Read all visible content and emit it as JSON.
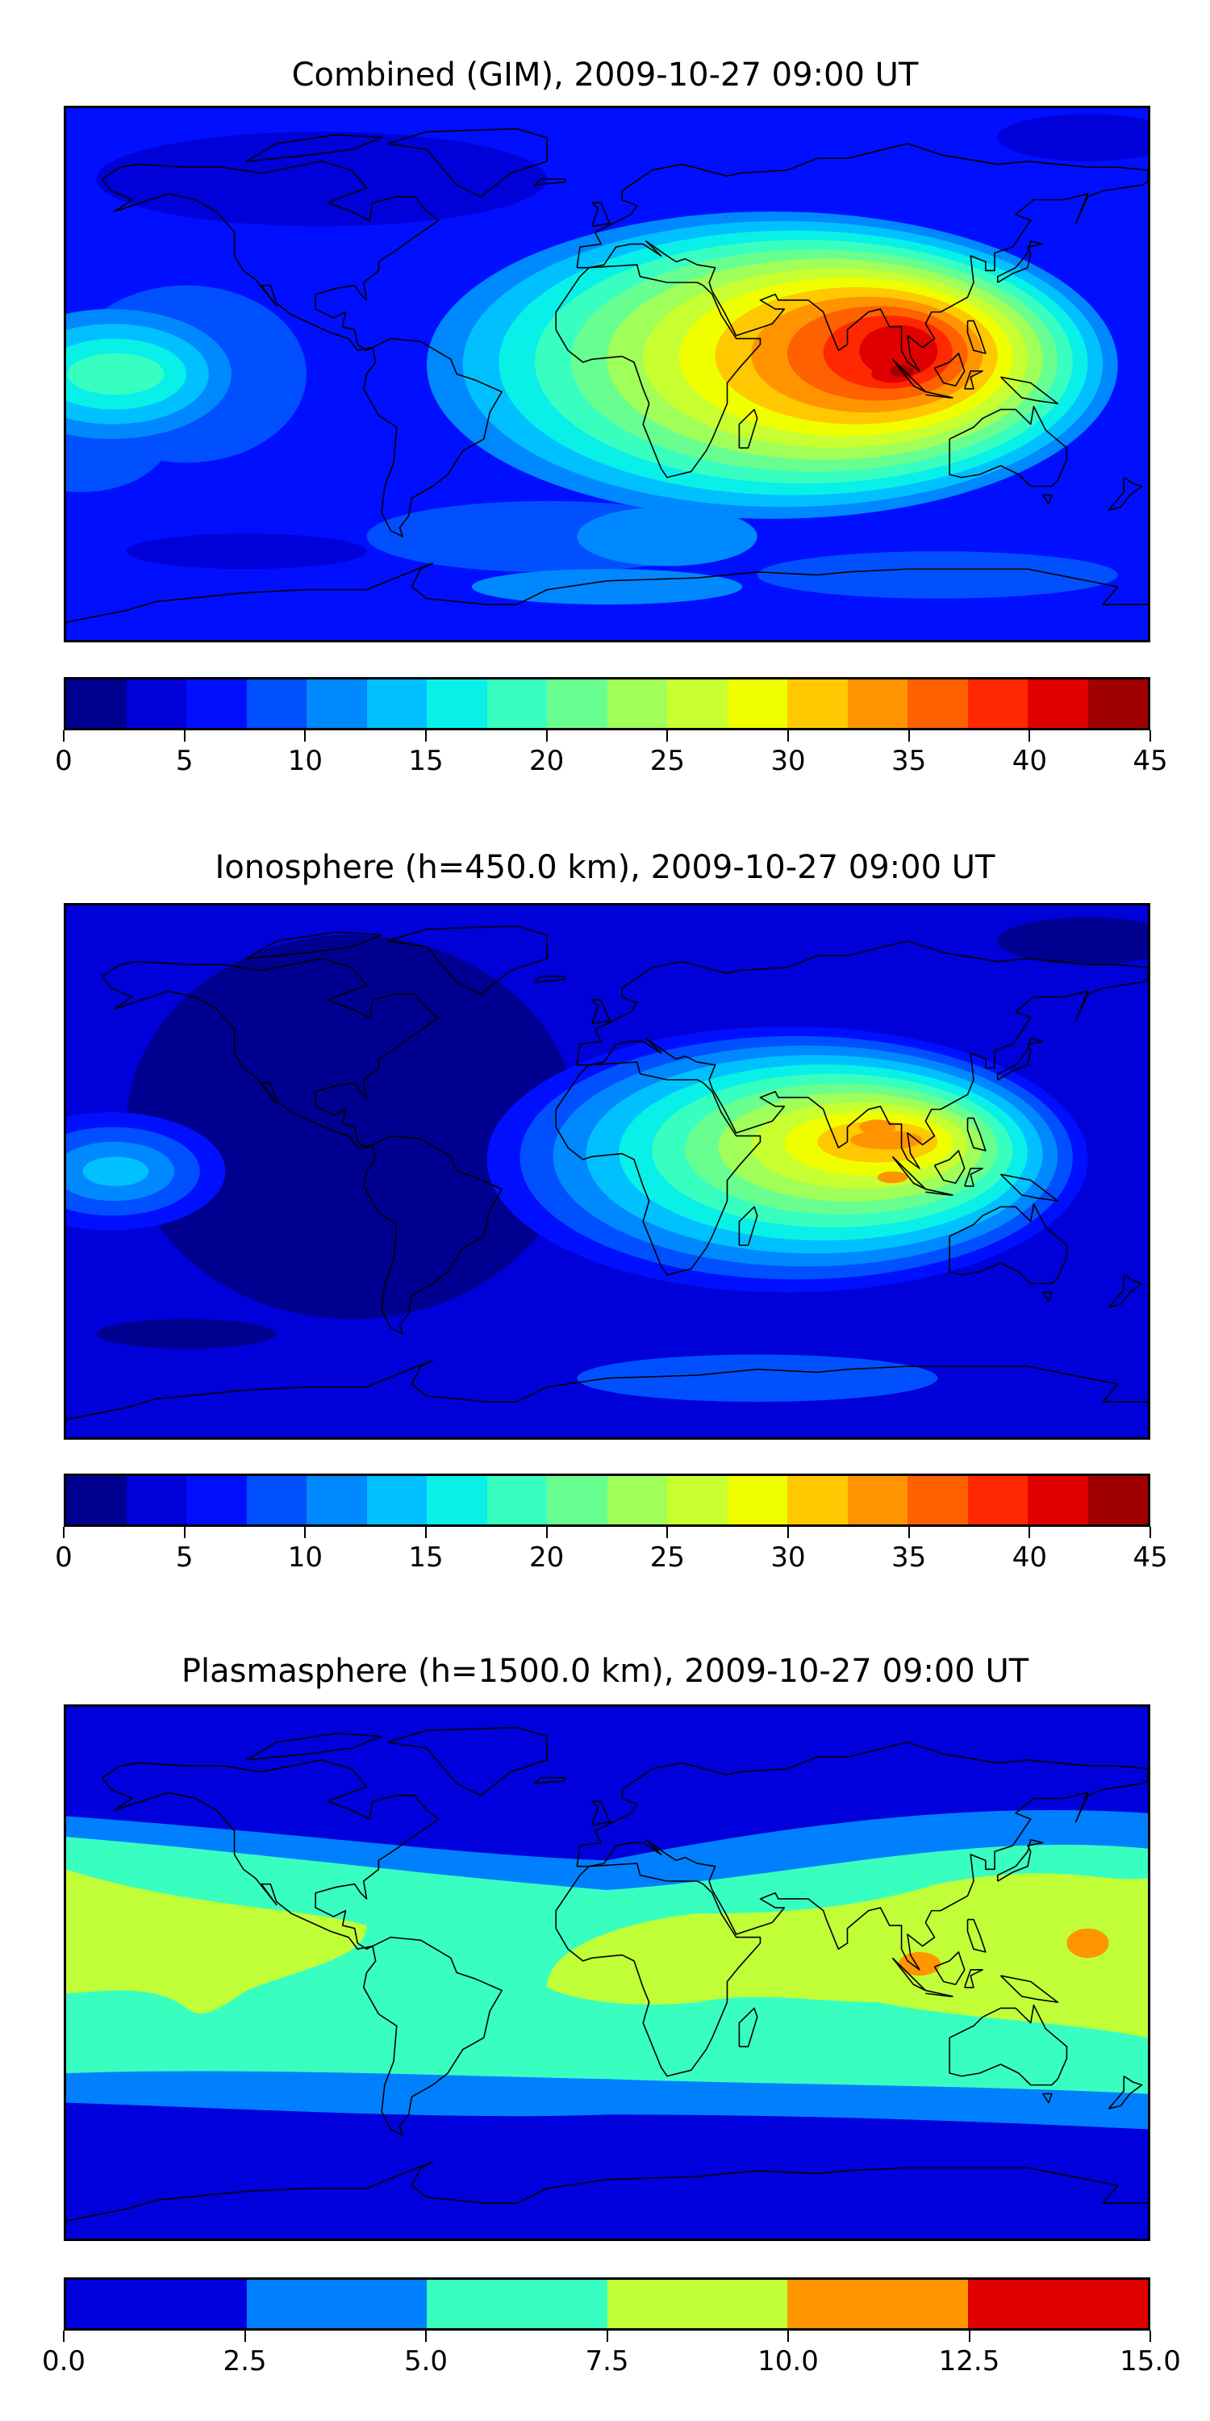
{
  "chart_data": [
    {
      "type": "heatmap",
      "title": "Combined (GIM), 2009-10-27 09:00 UT",
      "projection": "equirectangular, lon -180..180, lat -90..90",
      "colorbar": {
        "range": [
          0,
          45
        ],
        "step": 2.5,
        "tick_labels": [
          "0",
          "5",
          "10",
          "15",
          "20",
          "25",
          "30",
          "35",
          "40",
          "45"
        ],
        "colors": [
          "#000090",
          "#0000d8",
          "#0010ff",
          "#0050ff",
          "#0088ff",
          "#00c0ff",
          "#08f0e8",
          "#38ffc0",
          "#68ff90",
          "#a0ff58",
          "#c8ff30",
          "#f0ff00",
          "#ffc800",
          "#ff9400",
          "#ff6000",
          "#ff2800",
          "#e00000",
          "#a00000"
        ]
      },
      "features": {
        "max_region": "South/Southeast Asia, ~40-42.5",
        "min_region": "North America / Arctic, 0-2.5"
      }
    },
    {
      "type": "heatmap",
      "title": "Ionosphere  (h=450.0 km), 2009-10-27 09:00 UT",
      "projection": "equirectangular, lon -180..180, lat -90..90",
      "colorbar": {
        "range": [
          0,
          45
        ],
        "step": 2.5,
        "tick_labels": [
          "0",
          "5",
          "10",
          "15",
          "20",
          "25",
          "30",
          "35",
          "40",
          "45"
        ],
        "colors": [
          "#000090",
          "#0000d8",
          "#0010ff",
          "#0050ff",
          "#0088ff",
          "#00c0ff",
          "#08f0e8",
          "#38ffc0",
          "#68ff90",
          "#a0ff58",
          "#c8ff30",
          "#f0ff00",
          "#ffc800",
          "#ff9400",
          "#ff6000",
          "#ff2800",
          "#e00000",
          "#a00000"
        ]
      },
      "features": {
        "max_region": "India / Bay of Bengal, ~32.5-35",
        "min_region": "Americas, 0-2.5"
      }
    },
    {
      "type": "heatmap",
      "title": "Plasmasphere (h=1500.0 km), 2009-10-27 09:00 UT",
      "projection": "equirectangular, lon -180..180, lat -90..90",
      "colorbar": {
        "range": [
          0,
          15
        ],
        "step": 2.5,
        "tick_labels": [
          "0.0",
          "2.5",
          "5.0",
          "7.5",
          "10.0",
          "12.5",
          "15.0"
        ],
        "colors": [
          "#0000dc",
          "#0080ff",
          "#38ffc0",
          "#c0ff38",
          "#ff9600",
          "#e00000"
        ]
      },
      "features": {
        "max_region": "SE Asia & W Pacific, 10-12.5",
        "min_region": "polar regions, 0-2.5"
      }
    }
  ]
}
